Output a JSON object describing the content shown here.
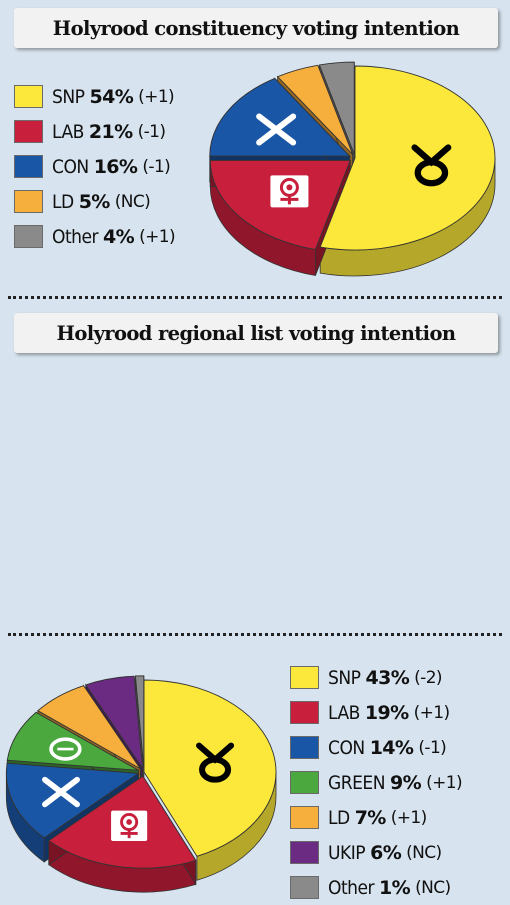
{
  "colors": {
    "background": "#d7e3ee",
    "snp": "#fbe83a",
    "lab": "#c81f3c",
    "con": "#1a56a6",
    "green": "#4aa83e",
    "ld": "#f6ae3c",
    "ukip": "#6b2b83",
    "other": "#8a8a8a"
  },
  "chart_data": [
    {
      "type": "pie",
      "title": "Holyrood constituency voting intention",
      "legend": "left",
      "slices": [
        {
          "label": "SNP",
          "value": 54,
          "change": "(+1)",
          "color": "#fbe83a",
          "icon": "snp-logo-icon"
        },
        {
          "label": "LAB",
          "value": 21,
          "change": "(-1)",
          "color": "#c81f3c",
          "icon": "labour-rose-icon"
        },
        {
          "label": "CON",
          "value": 16,
          "change": "(-1)",
          "color": "#1a56a6",
          "icon": "conservative-cross-icon"
        },
        {
          "label": "LD",
          "value": 5,
          "change": "(NC)",
          "color": "#f6ae3c"
        },
        {
          "label": "Other",
          "value": 4,
          "change": "(+1)",
          "color": "#8a8a8a"
        }
      ]
    },
    {
      "type": "pie",
      "title": "Holyrood regional list voting intention",
      "legend": "right",
      "slices": [
        {
          "label": "SNP",
          "value": 43,
          "change": "(-2)",
          "color": "#fbe83a",
          "icon": "snp-logo-icon"
        },
        {
          "label": "LAB",
          "value": 19,
          "change": "(+1)",
          "color": "#c81f3c",
          "icon": "labour-rose-icon"
        },
        {
          "label": "CON",
          "value": 14,
          "change": "(-1)",
          "color": "#1a56a6",
          "icon": "conservative-cross-icon"
        },
        {
          "label": "GREEN",
          "value": 9,
          "change": "(+1)",
          "color": "#4aa83e",
          "icon": "green-party-icon"
        },
        {
          "label": "LD",
          "value": 7,
          "change": "(+1)",
          "color": "#f6ae3c"
        },
        {
          "label": "UKIP",
          "value": 6,
          "change": "(NC)",
          "color": "#6b2b83"
        },
        {
          "label": "Other",
          "value": 1,
          "change": "(NC)",
          "color": "#8a8a8a"
        }
      ]
    }
  ]
}
